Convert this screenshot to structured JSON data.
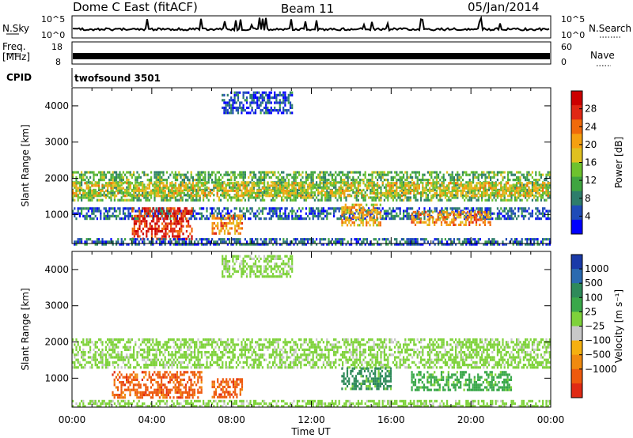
{
  "header": {
    "title": "Dome C East (fitACF)",
    "beam": "Beam 11",
    "date": "05/Jan/2014"
  },
  "nsky_panel": {
    "label": "N.Sky",
    "left_ticks": [
      "10^5",
      "10^0"
    ],
    "right_ticks": [
      "10^5",
      "10^0"
    ],
    "right_label": "N.Search"
  },
  "freq_panel": {
    "label_line1": "Freq.",
    "label_line2": "[MHz]",
    "left_ticks": [
      "18",
      "8"
    ],
    "right_ticks": [
      "60",
      "0"
    ],
    "right_label": "Nave"
  },
  "cpid": {
    "label": "CPID",
    "value": "twofsound 3501"
  },
  "chart_data": [
    {
      "type": "heatmap",
      "name": "power",
      "ylabel": "Slant Range [km]",
      "yticks": [
        "1000",
        "2000",
        "3000",
        "4000"
      ],
      "ylim": [
        200,
        4500
      ],
      "xlim": [
        0,
        24
      ],
      "colorbar": {
        "label": "Power [dB]",
        "ticks": [
          "4",
          "8",
          "12",
          "16",
          "20",
          "24",
          "28"
        ],
        "range": [
          0,
          32
        ],
        "colors": [
          "#0000ff",
          "#1f4bb8",
          "#2e7d6b",
          "#3fa540",
          "#6ec22e",
          "#e0c020",
          "#f5a010",
          "#f06a0a",
          "#e02814",
          "#cc0000"
        ]
      },
      "regions": [
        {
          "x0": 0,
          "x1": 24,
          "y0": 1400,
          "y1": 2200,
          "level": 12
        },
        {
          "x0": 0,
          "x1": 24,
          "y0": 1500,
          "y1": 1900,
          "level": 18
        },
        {
          "x0": 0,
          "x1": 24,
          "y0": 900,
          "y1": 1200,
          "level": 6
        },
        {
          "x0": 3,
          "x1": 6,
          "y0": 300,
          "y1": 1200,
          "level": 28
        },
        {
          "x0": 7,
          "x1": 8.5,
          "y0": 500,
          "y1": 1000,
          "level": 22
        },
        {
          "x0": 13.5,
          "x1": 15.5,
          "y0": 700,
          "y1": 1300,
          "level": 20
        },
        {
          "x0": 17,
          "x1": 21,
          "y0": 700,
          "y1": 1100,
          "level": 22
        },
        {
          "x0": 7.5,
          "x1": 11,
          "y0": 3800,
          "y1": 4400,
          "level": 5
        },
        {
          "x0": 0,
          "x1": 24,
          "y0": 200,
          "y1": 350,
          "level": 6
        }
      ]
    },
    {
      "type": "heatmap",
      "name": "velocity",
      "ylabel": "Slant Range [km]",
      "yticks": [
        "1000",
        "2000",
        "3000",
        "4000"
      ],
      "ylim": [
        200,
        4500
      ],
      "xlim": [
        0,
        24
      ],
      "xticks": [
        "00:00",
        "04:00",
        "08:00",
        "12:00",
        "16:00",
        "20:00",
        "00:00"
      ],
      "xlabel": "Time UT",
      "colorbar": {
        "label": "Velocity [m s⁻¹]",
        "ticks": [
          "1000",
          "500",
          "100",
          "25",
          "−25",
          "−100",
          "−500",
          "−1000"
        ],
        "colors": [
          "#1a3aa8",
          "#2a6ab0",
          "#2e8a5a",
          "#3aa84a",
          "#7ed23a",
          "#c8c8c8",
          "#f5b010",
          "#f08a10",
          "#ee5a0e",
          "#e02a14"
        ]
      },
      "regions": [
        {
          "x0": 0,
          "x1": 24,
          "y0": 1300,
          "y1": 2100,
          "level": 25
        },
        {
          "x0": 2,
          "x1": 6.5,
          "y0": 500,
          "y1": 1200,
          "level": -400
        },
        {
          "x0": 7,
          "x1": 8.5,
          "y0": 500,
          "y1": 1000,
          "level": -400
        },
        {
          "x0": 13.5,
          "x1": 16,
          "y0": 700,
          "y1": 1300,
          "level": 300
        },
        {
          "x0": 17,
          "x1": 22,
          "y0": 700,
          "y1": 1200,
          "level": 100
        },
        {
          "x0": 7.5,
          "x1": 11,
          "y0": 3800,
          "y1": 4400,
          "level": 25
        },
        {
          "x0": 0,
          "x1": 24,
          "y0": 200,
          "y1": 400,
          "level": 60
        }
      ]
    }
  ]
}
